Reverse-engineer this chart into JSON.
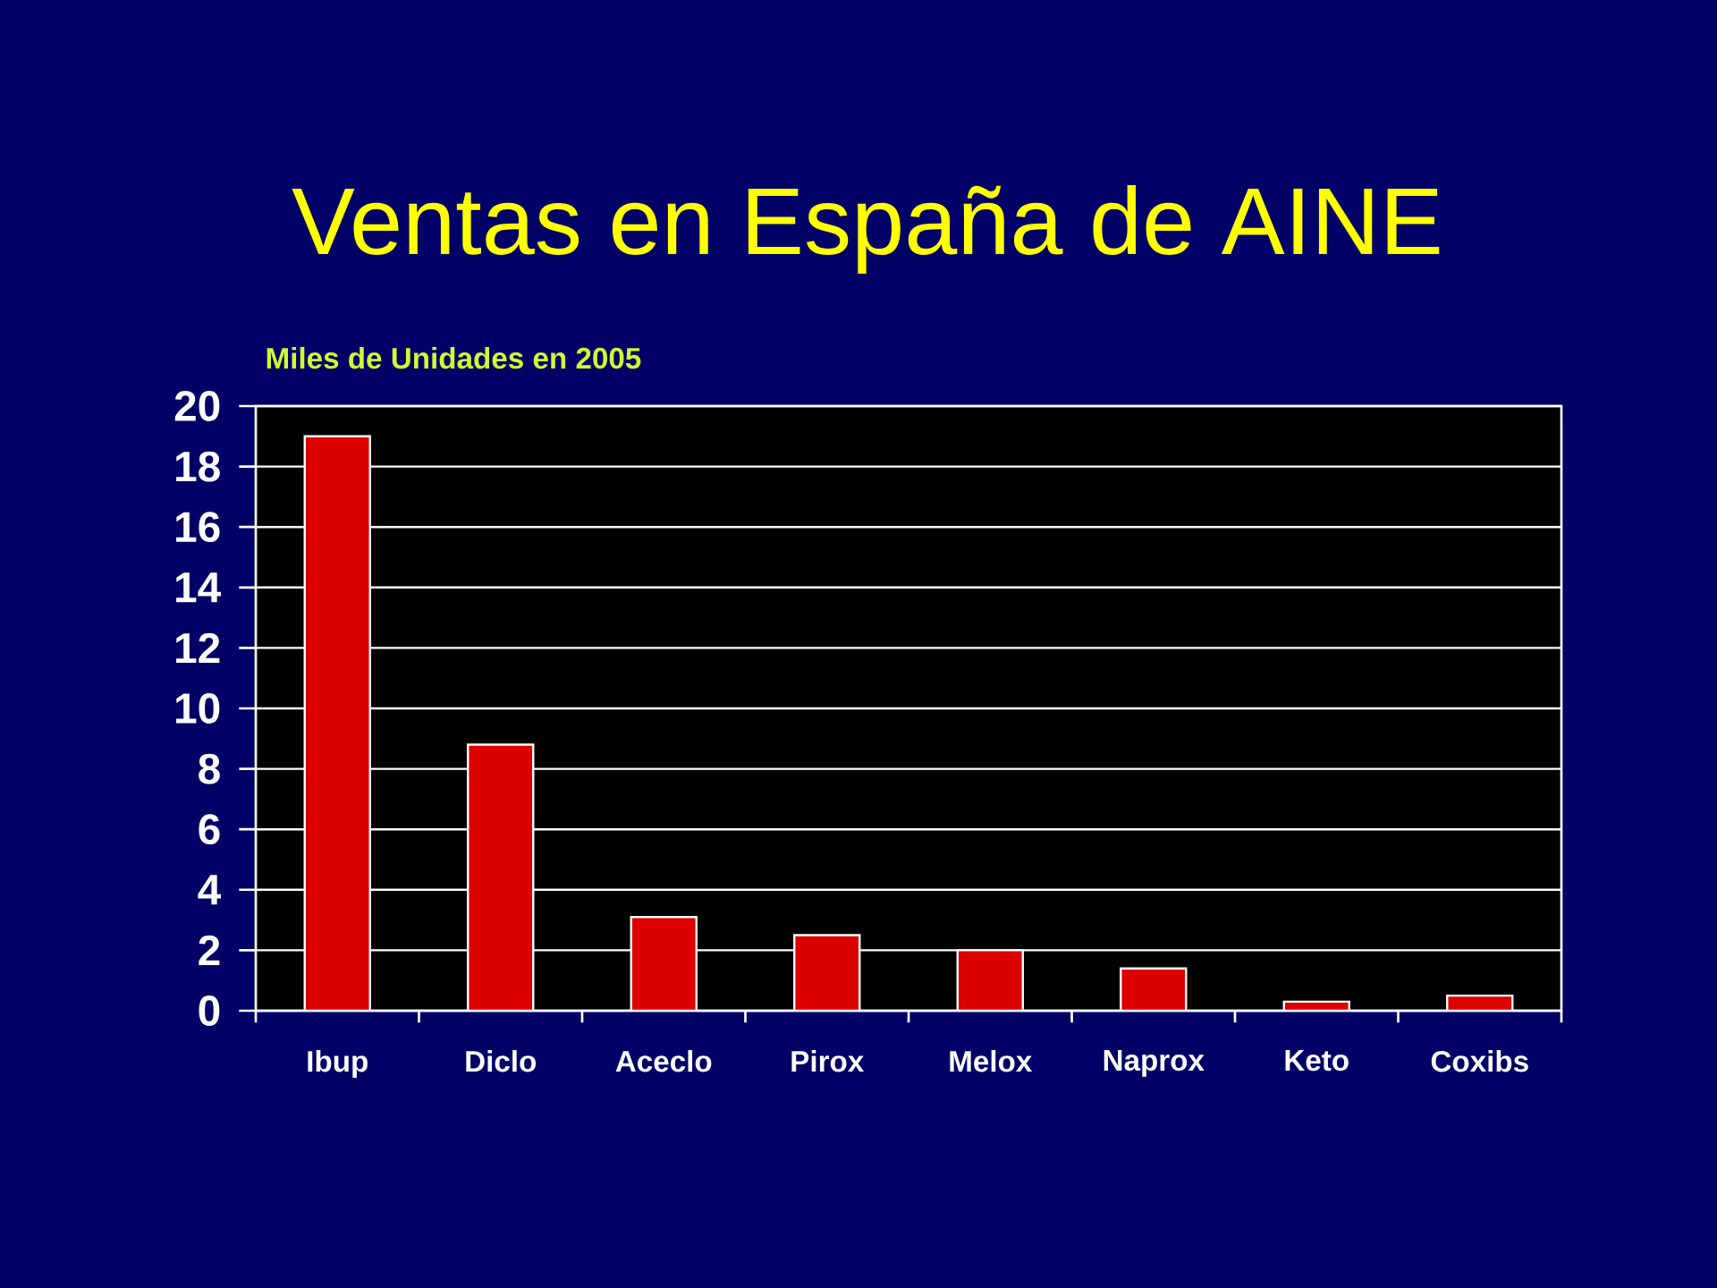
{
  "chart_data": {
    "type": "bar",
    "title": "Ventas en España de AINE",
    "ylabel": "Miles de Unidades en 2005",
    "categories": [
      "Ibup",
      "Diclo",
      "Aceclo",
      "Pirox",
      "Melox",
      "Naprox",
      "Keto",
      "Coxibs"
    ],
    "values": [
      19,
      8.8,
      3.1,
      2.5,
      2,
      1.4,
      0.3,
      0.5
    ],
    "color": "#dd0000",
    "ylim": [
      0,
      20
    ],
    "yticks": [
      0,
      2,
      4,
      6,
      8,
      10,
      12,
      14,
      16,
      18,
      20
    ],
    "grid": "y"
  }
}
